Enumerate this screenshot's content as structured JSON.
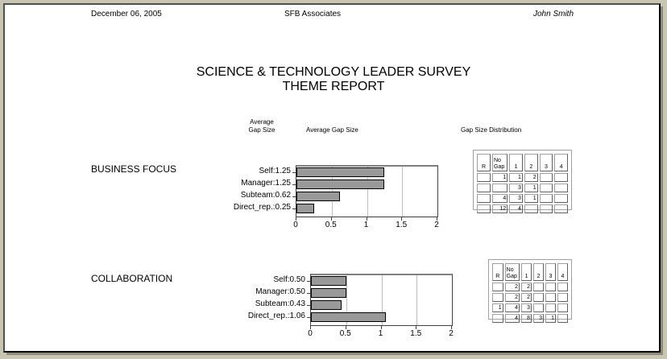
{
  "header": {
    "date": "December 06, 2005",
    "company": "SFB Associates",
    "user": "John Smith"
  },
  "title": {
    "line1": "SCIENCE & TECHNOLOGY LEADER SURVEY",
    "line2": "THEME REPORT"
  },
  "columns": {
    "avg_gap_line1": "Average",
    "avg_gap_line2": "Gap Size",
    "avg_gap_chart": "Average Gap Size",
    "distribution": "Gap Size Distribution"
  },
  "colors": {
    "bar": "#999999",
    "grid": "#c0c0c0",
    "background": "#c8c6b3"
  },
  "chart_data": [
    {
      "type": "bar",
      "orientation": "horizontal",
      "title": "BUSINESS FOCUS",
      "categories": [
        "Self",
        "Manager",
        "Subteam",
        "Direct_rep."
      ],
      "labels": [
        "Self:1.25",
        "Manager:1.25",
        "Subteam:0.62",
        "Direct_rep.:0.25"
      ],
      "values": [
        1.25,
        1.25,
        0.62,
        0.25
      ],
      "xlabel": "Average Gap Size",
      "xlim": [
        0,
        2
      ],
      "xticks": [
        "0",
        "0.5",
        "1",
        "1.5",
        "2"
      ],
      "grid": true
    },
    {
      "type": "bar",
      "orientation": "horizontal",
      "title": "COLLABORATION",
      "categories": [
        "Self",
        "Manager",
        "Subteam",
        "Direct_rep."
      ],
      "labels": [
        "Self:0.50",
        "Manager:0.50",
        "Subteam:0.43",
        "Direct_rep.:1.06"
      ],
      "values": [
        0.5,
        0.5,
        0.43,
        1.06
      ],
      "xlabel": "Average Gap Size",
      "xlim": [
        0,
        2
      ],
      "xticks": [
        "0",
        "0.5",
        "1",
        "1.5",
        "2"
      ],
      "grid": true
    },
    {
      "type": "table",
      "title": "BUSINESS FOCUS Gap Size Distribution",
      "columns": [
        "R",
        "No Gap",
        "1",
        "2",
        "3",
        "4"
      ],
      "rows": [
        [
          "",
          "1",
          "1",
          "2",
          "",
          ""
        ],
        [
          "",
          "",
          "3",
          "1",
          "",
          ""
        ],
        [
          "",
          "4",
          "3",
          "1",
          "",
          ""
        ],
        [
          "",
          "12",
          "4",
          "",
          "",
          ""
        ]
      ]
    },
    {
      "type": "table",
      "title": "COLLABORATION Gap Size Distribution",
      "columns": [
        "R",
        "No Gap",
        "1",
        "2",
        "3",
        "4"
      ],
      "rows": [
        [
          "",
          "2",
          "2",
          "",
          "",
          ""
        ],
        [
          "",
          "2",
          "2",
          "",
          "",
          ""
        ],
        [
          "1",
          "4",
          "3",
          "",
          "",
          ""
        ],
        [
          "",
          "4",
          "8",
          "3",
          "1",
          ""
        ]
      ]
    }
  ],
  "sections": [
    {
      "name": "BUSINESS FOCUS",
      "bars": [
        {
          "label": "Self:1.25",
          "value": 1.25
        },
        {
          "label": "Manager:1.25",
          "value": 1.25
        },
        {
          "label": "Subteam:0.62",
          "value": 0.62
        },
        {
          "label": "Direct_rep.:0.25",
          "value": 0.25
        }
      ],
      "dist_head": [
        "R",
        "No",
        "Gap",
        "1",
        "2",
        "3",
        "4"
      ],
      "dist_rows": [
        [
          "",
          "1",
          "1",
          "2",
          "",
          ""
        ],
        [
          "",
          "",
          "3",
          "1",
          "",
          ""
        ],
        [
          "",
          "4",
          "3",
          "1",
          "",
          ""
        ],
        [
          "",
          "12",
          "4",
          "",
          "",
          ""
        ]
      ]
    },
    {
      "name": "COLLABORATION",
      "bars": [
        {
          "label": "Self:0.50",
          "value": 0.5
        },
        {
          "label": "Manager:0.50",
          "value": 0.5
        },
        {
          "label": "Subteam:0.43",
          "value": 0.43
        },
        {
          "label": "Direct_rep.:1.06",
          "value": 1.06
        }
      ],
      "dist_head": [
        "R",
        "No",
        "Gap",
        "1",
        "2",
        "3",
        "4"
      ],
      "dist_rows": [
        [
          "",
          "2",
          "2",
          "",
          "",
          ""
        ],
        [
          "",
          "2",
          "2",
          "",
          "",
          ""
        ],
        [
          "1",
          "4",
          "3",
          "",
          "",
          ""
        ],
        [
          "",
          "4",
          "8",
          "3",
          "1",
          ""
        ]
      ]
    }
  ],
  "axis": {
    "ticks": [
      "0",
      "0.5",
      "1",
      "1.5",
      "2"
    ],
    "max": 2
  }
}
